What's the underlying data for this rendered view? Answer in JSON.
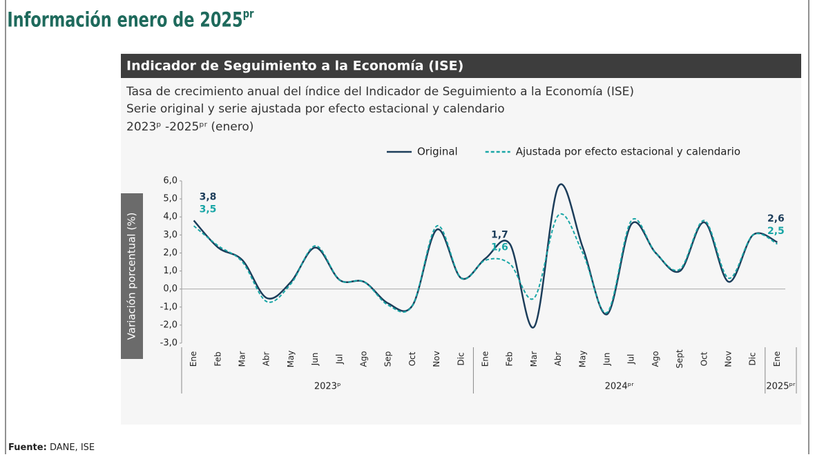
{
  "page_title": "Información enero de 2025",
  "page_title_sup": "pr",
  "source_label": "Fuente:",
  "source": "DANE, ISE",
  "chart_data": {
    "type": "line",
    "title": "Indicador de Seguimiento a la Economía (ISE)",
    "subtitle": [
      "Tasa de crecimiento anual del índice del Indicador de Seguimiento a la Economía (ISE)",
      "Serie original y serie ajustada por efecto estacional y calendario",
      "2023ᵖ -2025ᵖʳ (enero)"
    ],
    "y_label": "Variación porcentual (%)",
    "categories": [
      "Ene",
      "Feb",
      "Mar",
      "Abr",
      "May",
      "Jun",
      "Jul",
      "Ago",
      "Sep",
      "Oct",
      "Nov",
      "Dic",
      "Ene",
      "Feb",
      "Mar",
      "Abr",
      "May",
      "Jun",
      "Jul",
      "Ago",
      "Sept",
      "Oct",
      "Nov",
      "Dic",
      "Ene"
    ],
    "groups": [
      {
        "label": "2023ᵖ",
        "start": 0,
        "end": 11
      },
      {
        "label": "2024ᵖʳ",
        "start": 12,
        "end": 23
      },
      {
        "label": "2025ᵖʳ",
        "start": 24,
        "end": 24
      }
    ],
    "series": [
      {
        "name": "Original",
        "color": "#1c3d5a",
        "dash": false,
        "values": [
          3.8,
          2.3,
          1.6,
          -0.5,
          0.4,
          2.3,
          0.5,
          0.4,
          -0.8,
          -0.9,
          3.3,
          0.6,
          1.7,
          2.5,
          -2.1,
          5.7,
          2.3,
          -1.4,
          3.6,
          2.0,
          1.0,
          3.7,
          0.4,
          3.0,
          2.6
        ],
        "value_labels": [
          "3,8",
          null,
          null,
          null,
          null,
          null,
          null,
          null,
          null,
          null,
          null,
          null,
          "1,7",
          null,
          null,
          null,
          null,
          null,
          null,
          null,
          null,
          null,
          null,
          null,
          "2,6"
        ]
      },
      {
        "name": "Ajustada por efecto estacional y calendario",
        "color": "#19a6a6",
        "dash": true,
        "values": [
          3.5,
          2.4,
          1.5,
          -0.7,
          0.3,
          2.4,
          0.5,
          0.4,
          -0.9,
          -0.9,
          3.5,
          0.6,
          1.6,
          1.4,
          -0.5,
          4.1,
          2.0,
          -1.3,
          3.8,
          2.0,
          1.1,
          3.8,
          0.6,
          3.0,
          2.5
        ],
        "value_labels": [
          "3,5",
          null,
          null,
          null,
          null,
          null,
          null,
          null,
          null,
          null,
          null,
          null,
          "1,6",
          null,
          null,
          null,
          null,
          null,
          null,
          null,
          null,
          null,
          null,
          null,
          "2,5"
        ]
      }
    ],
    "ylim": [
      -3,
      6
    ],
    "yticks": [
      {
        "value": 6,
        "label": "6,0"
      },
      {
        "value": 5,
        "label": "5,0"
      },
      {
        "value": 4,
        "label": "4,0"
      },
      {
        "value": 3,
        "label": "3,0"
      },
      {
        "value": 2,
        "label": "2,0"
      },
      {
        "value": 1,
        "label": "1,0"
      },
      {
        "value": 0,
        "label": "0,0"
      },
      {
        "value": -1,
        "label": "-1,0"
      },
      {
        "value": -2,
        "label": "-2,0"
      },
      {
        "value": -3,
        "label": "-3,0"
      }
    ],
    "grid": false,
    "legend": "top-right"
  }
}
